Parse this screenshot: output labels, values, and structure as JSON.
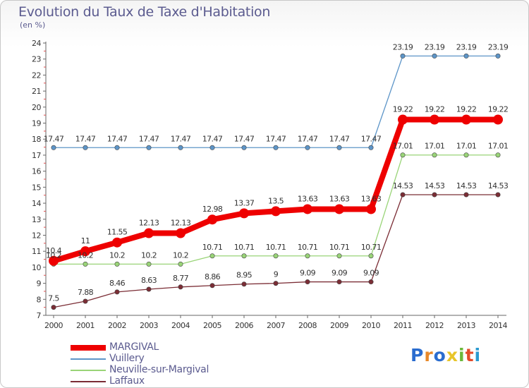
{
  "title": "Evolution du Taux de Taxe d'Habitation",
  "subtitle": "(en %)",
  "logo": "Proxiti",
  "colors": {
    "logo": [
      "#2a6ccf",
      "#e8892a",
      "#2a6ccf",
      "#e8c52a",
      "#6bb83a",
      "#e34b2a",
      "#2a9ad0"
    ],
    "axis": "#666666",
    "grid_tick": "#e05050"
  },
  "chart_data": {
    "type": "line",
    "x": [
      "2000",
      "2001",
      "2002",
      "2003",
      "2004",
      "2005",
      "2006",
      "2007",
      "2008",
      "2009",
      "2010",
      "2011",
      "2012",
      "2013",
      "2014"
    ],
    "ylim": [
      7,
      24
    ],
    "yticks": [
      7,
      8,
      9,
      10,
      11,
      12,
      13,
      14,
      15,
      16,
      17,
      18,
      19,
      20,
      21,
      22,
      23,
      24
    ],
    "series": [
      {
        "name": "MARGIVAL",
        "color": "#ee0000",
        "values": [
          10.4,
          11,
          11.55,
          12.13,
          12.13,
          12.98,
          13.37,
          13.5,
          13.63,
          13.63,
          13.63,
          19.22,
          19.22,
          19.22,
          19.22
        ],
        "labels": [
          "10.4",
          "11",
          "11.55",
          "12.13",
          "12.13",
          "12.98",
          "13.37",
          "13.5",
          "13.63",
          "13.63",
          "13.63",
          "19.22",
          "19.22",
          "19.22",
          "19.22"
        ]
      },
      {
        "name": "Vuillery",
        "color": "#5d95c8",
        "values": [
          17.47,
          17.47,
          17.47,
          17.47,
          17.47,
          17.47,
          17.47,
          17.47,
          17.47,
          17.47,
          17.47,
          23.19,
          23.19,
          23.19,
          23.19
        ],
        "labels": [
          "17.47",
          "17.47",
          "17.47",
          "17.47",
          "17.47",
          "17.47",
          "17.47",
          "17.47",
          "17.47",
          "17.47",
          "17.47",
          "23.19",
          "23.19",
          "23.19",
          "23.19"
        ]
      },
      {
        "name": "Neuville-sur-Margival",
        "color": "#99d477",
        "values": [
          10.2,
          10.2,
          10.2,
          10.2,
          10.2,
          10.71,
          10.71,
          10.71,
          10.71,
          10.71,
          10.71,
          17.01,
          17.01,
          17.01,
          17.01
        ],
        "labels": [
          "10.2",
          "10.2",
          "10.2",
          "10.2",
          "10.2",
          "10.71",
          "10.71",
          "10.71",
          "10.71",
          "10.71",
          "10.71",
          "17.01",
          "17.01",
          "17.01",
          "17.01"
        ]
      },
      {
        "name": "Laffaux",
        "color": "#7b2d35",
        "values": [
          7.5,
          7.88,
          8.46,
          8.63,
          8.77,
          8.86,
          8.95,
          9,
          9.09,
          9.09,
          9.09,
          14.53,
          14.53,
          14.53,
          14.53
        ],
        "labels": [
          "7.5",
          "7.88",
          "8.46",
          "8.63",
          "8.77",
          "8.86",
          "8.95",
          "9",
          "9.09",
          "9.09",
          "9.09",
          "14.53",
          "14.53",
          "14.53",
          "14.53"
        ]
      }
    ]
  }
}
